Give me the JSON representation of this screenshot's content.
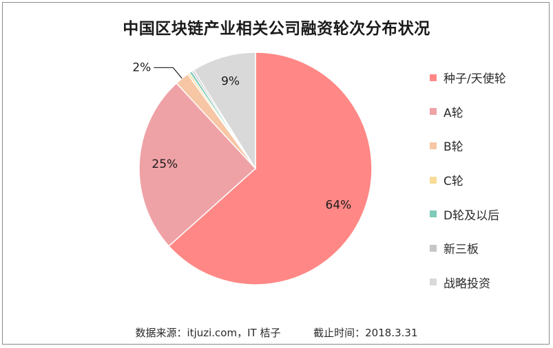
{
  "chart_data": {
    "type": "pie",
    "title": "中国区块链产业相关公司融资轮次分布状况",
    "categories": [
      "种子/天使轮",
      "A轮",
      "B轮",
      "C轮",
      "D轮及以后",
      "新三板",
      "战略投资"
    ],
    "values": [
      64,
      25,
      2,
      0.3,
      0.4,
      0.3,
      9
    ],
    "colors": [
      "#FF8886",
      "#EFA2A6",
      "#F7C6A4",
      "#F9DC98",
      "#7FCAB8",
      "#C6C6C6",
      "#D9D9D9"
    ],
    "data_labels": [
      "64%",
      "25%",
      "2%",
      "",
      "",
      "",
      "9%"
    ],
    "legend_position": "right"
  },
  "source_label": "数据来源：itjuzi.com，IT 桔子",
  "date_label": "截止时间：2018.3.31"
}
